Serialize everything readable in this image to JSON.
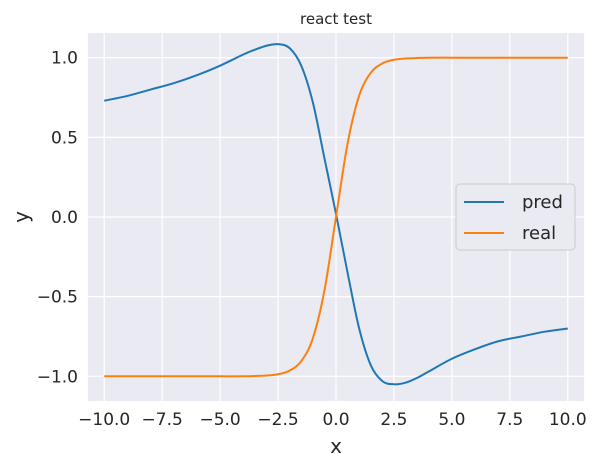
{
  "chart_data": {
    "type": "line",
    "title": "react test",
    "xlabel": "x",
    "ylabel": "y",
    "xlim": [
      -10.7,
      10.7
    ],
    "ylim": [
      -1.155,
      1.155
    ],
    "xticks": [
      -10.0,
      -7.5,
      -5.0,
      -2.5,
      0.0,
      2.5,
      5.0,
      7.5,
      10.0
    ],
    "xtick_labels": [
      "−10.0",
      "−7.5",
      "−5.0",
      "−2.5",
      "0.0",
      "2.5",
      "5.0",
      "7.5",
      "10.0"
    ],
    "yticks": [
      -1.0,
      -0.5,
      0.0,
      0.5,
      1.0
    ],
    "ytick_labels": [
      "−1.0",
      "−0.5",
      "0.0",
      "0.5",
      "1.0"
    ],
    "grid": true,
    "legend": "center-right",
    "series": [
      {
        "name": "pred",
        "color": "#1f77b4",
        "x": [
          -10,
          -9,
          -8,
          -7,
          -6,
          -5,
          -4,
          -3.5,
          -3,
          -2.5,
          -2,
          -1.5,
          -1,
          -0.5,
          0,
          0.5,
          1,
          1.5,
          2,
          2.5,
          3,
          3.5,
          4,
          5,
          6,
          7,
          8,
          9,
          10
        ],
        "y": [
          0.73,
          0.76,
          0.8,
          0.84,
          0.89,
          0.95,
          1.02,
          1.05,
          1.075,
          1.085,
          1.06,
          0.95,
          0.72,
          0.37,
          0.02,
          -0.35,
          -0.7,
          -0.93,
          -1.03,
          -1.05,
          -1.04,
          -1.01,
          -0.97,
          -0.89,
          -0.83,
          -0.78,
          -0.75,
          -0.72,
          -0.7
        ]
      },
      {
        "name": "real",
        "color": "#ff7f0e",
        "x": [
          -10,
          -9,
          -8,
          -7,
          -6,
          -5,
          -4,
          -3.5,
          -3,
          -2.5,
          -2,
          -1.5,
          -1,
          -0.5,
          0,
          0.5,
          1,
          1.5,
          2,
          2.5,
          3,
          3.5,
          4,
          5,
          6,
          7,
          8,
          9,
          10
        ],
        "y": [
          -1.0,
          -1.0,
          -1.0,
          -1.0,
          -1.0,
          -1.0,
          -1.0,
          -0.998,
          -0.995,
          -0.987,
          -0.964,
          -0.905,
          -0.762,
          -0.462,
          0.0,
          0.462,
          0.762,
          0.905,
          0.964,
          0.987,
          0.995,
          0.998,
          1.0,
          1.0,
          1.0,
          1.0,
          1.0,
          1.0,
          1.0
        ]
      }
    ]
  }
}
